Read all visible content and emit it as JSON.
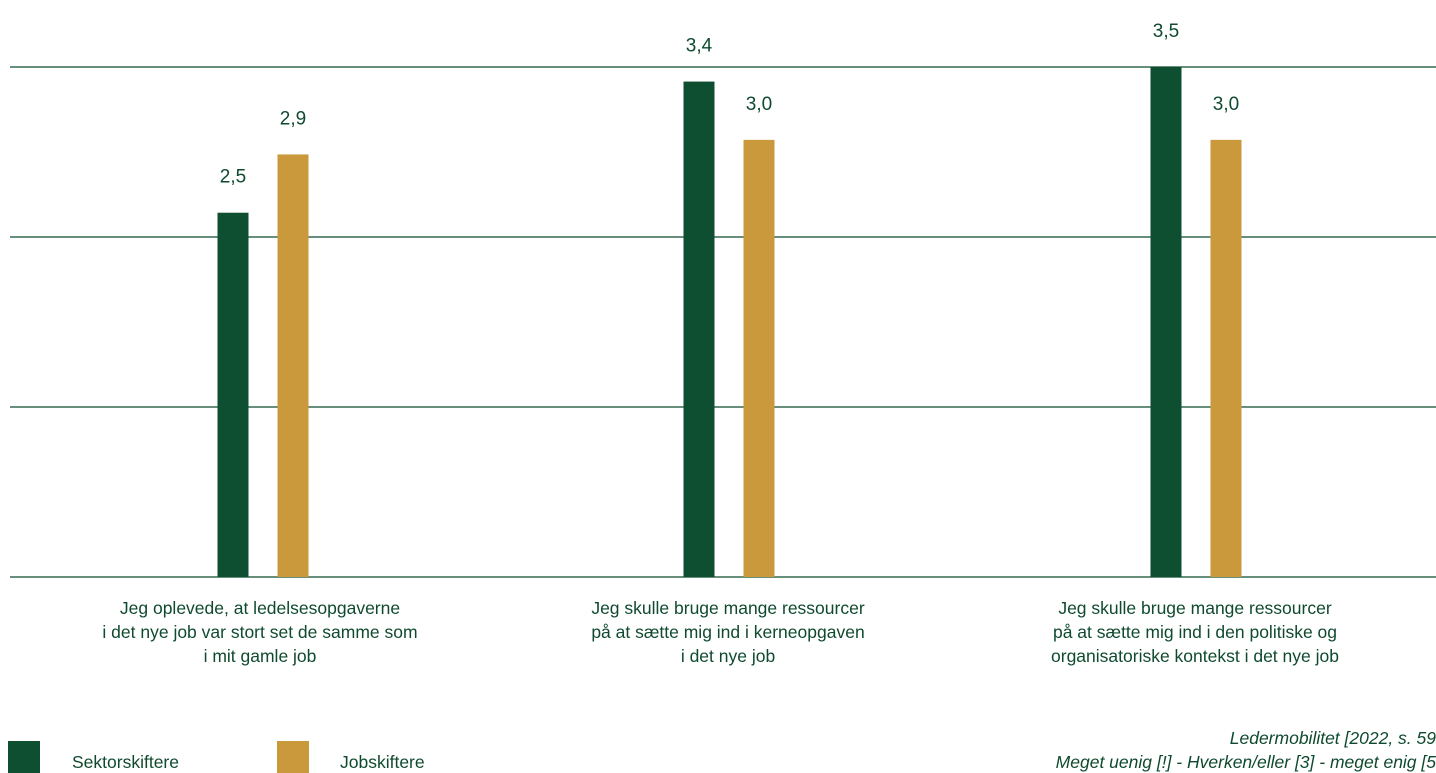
{
  "chart_data": {
    "type": "bar",
    "categories": [
      "Jeg oplevede, at ledelsesopgaverne\ni det nye job var stort set de samme som\ni mit gamle job",
      "Jeg skulle bruge mange ressourcer\npå at sætte mig ind i kerneopgaven\ni det nye job",
      "Jeg skulle bruge mange ressourcer\npå at sætte mig ind i den politiske og\norganisatoriske kontekst i det nye job"
    ],
    "series": [
      {
        "name": "Sektorskiftere",
        "values": [
          2.5,
          3.4,
          3.5
        ],
        "labels": [
          "2,5",
          "3,4",
          "3,5"
        ],
        "color": "#0e4e31"
      },
      {
        "name": "Jobskiftere",
        "values": [
          2.9,
          3.0,
          3.0
        ],
        "labels": [
          "2,9",
          "3,0",
          "3,0"
        ],
        "color": "#c9993c"
      }
    ],
    "ylim": [
      0,
      3.5
    ],
    "grid": true,
    "legend_position": "bottom-left"
  },
  "source": {
    "line1": "Ledermobilitet [2022, s. 59",
    "line2": "Meget uenig [!] - Hverken/eller [3] - meget enig [5"
  }
}
